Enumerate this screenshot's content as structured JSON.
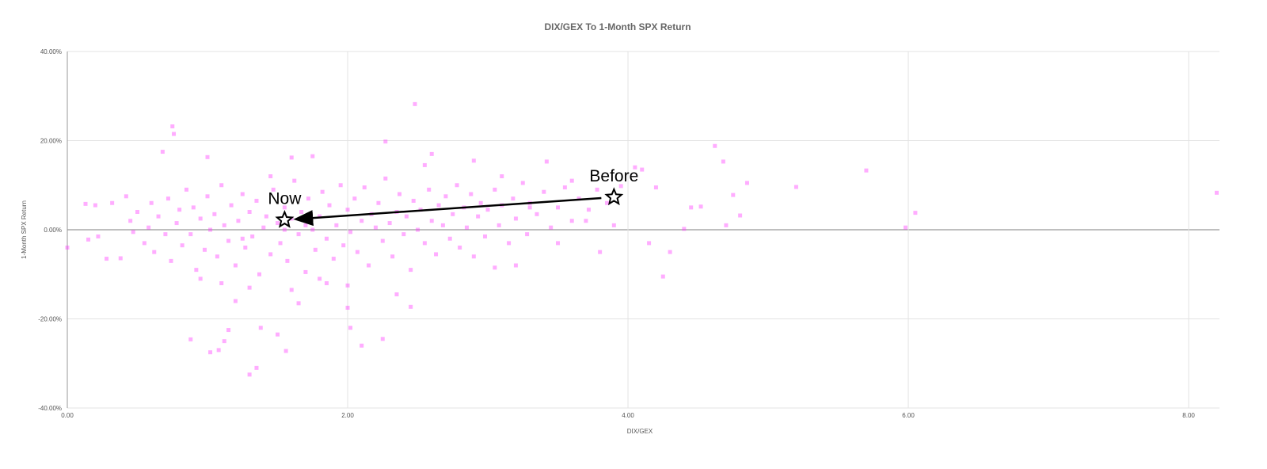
{
  "chart_data": {
    "type": "scatter",
    "title": "DIX/GEX To 1-Month SPX Return",
    "x_label": "DIX/GEX",
    "y_label": "1-Month SPX Return",
    "color": "#ff33ff",
    "grid": true,
    "xlim": [
      0,
      8.22
    ],
    "ylim": [
      -40,
      40
    ],
    "xticks": [
      {
        "value": 0,
        "label": "0.00"
      },
      {
        "value": 2,
        "label": "2.00"
      },
      {
        "value": 4,
        "label": "4.00"
      },
      {
        "value": 6,
        "label": "6.00"
      },
      {
        "value": 8,
        "label": "8.00"
      }
    ],
    "yticks": [
      {
        "value": -40,
        "label": "-40.00%"
      },
      {
        "value": -20,
        "label": "-20.00%"
      },
      {
        "value": 0,
        "label": "0.00%"
      },
      {
        "value": 20,
        "label": "20.00%"
      },
      {
        "value": 40,
        "label": "40.00%"
      }
    ],
    "annotations": [
      {
        "text": "Now",
        "x": 1.55,
        "y": 2.2
      },
      {
        "text": "Before",
        "x": 3.9,
        "y": 7.3
      }
    ],
    "x": [
      0,
      0.13,
      0.15,
      0.2,
      0.22,
      0.28,
      0.32,
      0.38,
      0.42,
      0.47,
      0.68,
      0.75,
      0.76,
      0.88,
      1.0,
      1.02,
      1.08,
      1.12,
      1.15,
      1.2,
      1.3,
      1.35,
      1.38,
      1.5,
      1.56,
      1.6,
      1.65,
      1.75,
      1.85,
      2.0,
      2.02,
      2.1,
      2.25,
      2.27,
      2.48,
      2.45,
      2.35,
      2.55,
      2.6,
      2.9,
      3.42,
      3.2,
      3.05,
      3.8,
      4.05,
      4.1,
      4.15,
      4.25,
      4.3,
      4.4,
      4.45,
      4.52,
      4.62,
      4.68,
      4.7,
      4.75,
      4.8,
      4.85,
      5.2,
      5.7,
      5.98,
      6.05,
      8.2,
      3.95,
      4.2,
      3.6,
      3.7,
      3.5,
      3.3,
      3.1,
      0.45,
      0.5,
      0.55,
      0.58,
      0.6,
      0.62,
      0.65,
      0.7,
      0.72,
      0.74,
      0.78,
      0.8,
      0.82,
      0.85,
      0.88,
      0.9,
      0.92,
      0.95,
      0.98,
      1.0,
      1.02,
      1.05,
      1.07,
      1.1,
      1.12,
      1.15,
      1.17,
      1.2,
      1.22,
      1.25,
      1.27,
      1.3,
      1.32,
      1.35,
      1.37,
      1.4,
      1.42,
      1.45,
      1.47,
      1.5,
      1.52,
      1.55,
      1.57,
      1.6,
      1.62,
      1.65,
      1.67,
      1.7,
      1.72,
      1.75,
      1.77,
      1.8,
      1.82,
      1.85,
      1.87,
      1.9,
      1.92,
      1.95,
      1.97,
      2.0,
      2.02,
      2.05,
      2.07,
      2.1,
      2.12,
      2.15,
      2.17,
      2.2,
      2.22,
      2.25,
      2.27,
      2.3,
      2.32,
      2.35,
      2.37,
      2.4,
      2.42,
      2.45,
      2.47,
      2.5,
      2.52,
      2.55,
      2.58,
      2.6,
      2.63,
      2.65,
      2.68,
      2.7,
      2.73,
      2.75,
      2.78,
      2.8,
      2.83,
      2.85,
      2.88,
      2.9,
      2.93,
      2.95,
      2.98,
      3.0,
      3.05,
      3.08,
      3.1,
      3.15,
      3.18,
      3.2,
      3.25,
      3.28,
      3.3,
      3.35,
      3.4,
      3.45,
      3.5,
      3.55,
      3.6,
      3.65,
      3.72,
      3.78,
      3.85,
      3.9,
      1.1,
      1.3,
      1.6,
      1.8,
      2.0,
      0.95,
      1.45,
      1.25,
      1.55,
      1.7
    ],
    "values": [
      -4,
      5.8,
      -2.2,
      5.5,
      -1.5,
      -6.5,
      6,
      -6.4,
      7.5,
      -0.5,
      17.5,
      23.2,
      21.5,
      -24.6,
      16.3,
      -27.5,
      -27,
      -25,
      -22.5,
      -16,
      -32.5,
      -31,
      -22,
      -23.5,
      -27.2,
      16.2,
      -16.5,
      16.5,
      -12,
      -17.5,
      -22,
      -26,
      -24.5,
      19.8,
      28.2,
      -17.3,
      -14.5,
      14.5,
      17,
      15.5,
      15.3,
      -8,
      -8.5,
      -5,
      14,
      13.5,
      -3,
      -10.5,
      -5,
      0.2,
      5,
      5.2,
      18.8,
      15.3,
      1,
      7.8,
      3.2,
      10.5,
      9.6,
      13.3,
      0.5,
      3.8,
      8.3,
      9.8,
      9.5,
      11,
      2,
      -3,
      5,
      12,
      2,
      4,
      -3,
      0.5,
      6,
      -5,
      3,
      -1,
      7,
      -7,
      1.5,
      4.5,
      -3.5,
      9,
      -1,
      5,
      -9,
      2.5,
      -4.5,
      7.5,
      0,
      3.5,
      -6,
      10,
      1,
      -2.5,
      5.5,
      -8,
      2,
      8,
      -4,
      4,
      -1.5,
      6.5,
      -10,
      0.5,
      3,
      -5.5,
      9,
      1.5,
      -3,
      5,
      -7,
      2.5,
      11,
      -1,
      4,
      -9.5,
      7,
      0,
      -4.5,
      3,
      8.5,
      -2,
      5.5,
      -6.5,
      1,
      10,
      -3.5,
      4.5,
      -0.5,
      7,
      -5,
      2,
      9.5,
      -8,
      3.5,
      0.5,
      6,
      -2.5,
      11.5,
      1.5,
      -6,
      4,
      8,
      -1,
      3,
      -9,
      6.5,
      0,
      4.5,
      -3,
      9,
      2,
      -5.5,
      5.5,
      1,
      7.5,
      -2,
      3.5,
      10,
      -4,
      5,
      0.5,
      8,
      -6,
      3,
      6,
      -1.5,
      4.5,
      9,
      1,
      5.5,
      -3,
      7,
      2.5,
      10.5,
      -1,
      6,
      3.5,
      8.5,
      0.5,
      5,
      9.5,
      2,
      7,
      4.5,
      9,
      6,
      1,
      -12,
      -13,
      -13.5,
      -11,
      -12.5,
      -11,
      12,
      -2,
      0,
      1
    ]
  }
}
